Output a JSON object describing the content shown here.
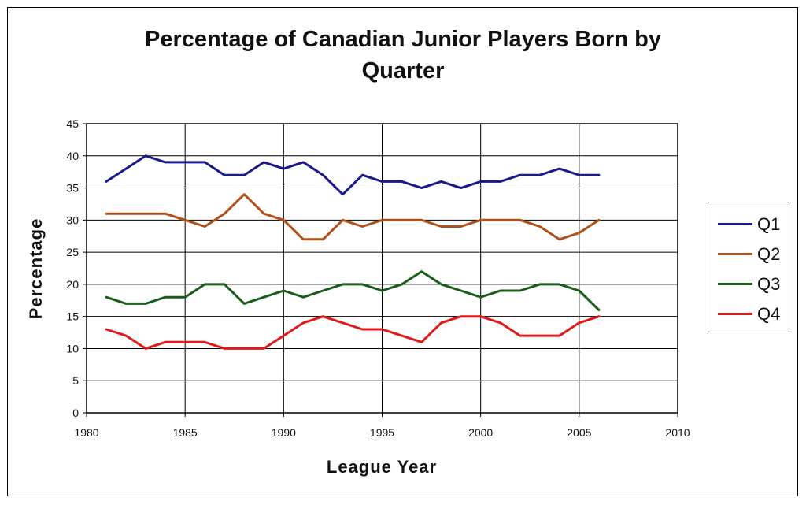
{
  "chart_data": {
    "type": "line",
    "title": "Percentage of Canadian Junior Players Born by Quarter",
    "title_lines": [
      "Percentage of Canadian Junior Players Born by",
      "Quarter"
    ],
    "xlabel": "League Year",
    "ylabel": "Percentage",
    "xlim": [
      1980,
      2010
    ],
    "ylim": [
      0,
      45
    ],
    "x_ticks": [
      "1980",
      "1985",
      "1990",
      "1995",
      "2000",
      "2005",
      "2010"
    ],
    "y_ticks": [
      "0",
      "5",
      "10",
      "15",
      "20",
      "25",
      "30",
      "35",
      "40",
      "45"
    ],
    "grid": true,
    "legend_placement": "right",
    "x": [
      1981,
      1982,
      1983,
      1984,
      1985,
      1986,
      1987,
      1988,
      1989,
      1990,
      1991,
      1992,
      1993,
      1994,
      1995,
      1996,
      1997,
      1998,
      1999,
      2000,
      2001,
      2002,
      2003,
      2004,
      2005,
      2006
    ],
    "series": [
      {
        "name": "Q1",
        "color": "#1a1a8c",
        "values": [
          36,
          38,
          40,
          39,
          39,
          39,
          37,
          37,
          39,
          38,
          39,
          37,
          34,
          37,
          36,
          36,
          35,
          36,
          35,
          36,
          36,
          37,
          37,
          38,
          37,
          37
        ]
      },
      {
        "name": "Q2",
        "color": "#b0501a",
        "values": [
          31,
          31,
          31,
          31,
          30,
          29,
          31,
          34,
          31,
          30,
          27,
          27,
          30,
          29,
          30,
          30,
          30,
          29,
          29,
          30,
          30,
          30,
          29,
          27,
          28,
          30
        ]
      },
      {
        "name": "Q3",
        "color": "#1a5c1a",
        "values": [
          18,
          17,
          17,
          18,
          18,
          20,
          20,
          17,
          18,
          19,
          18,
          19,
          20,
          20,
          19,
          20,
          22,
          20,
          19,
          18,
          19,
          19,
          20,
          20,
          19,
          16
        ]
      },
      {
        "name": "Q4",
        "color": "#e01a1a",
        "values": [
          13,
          12,
          10,
          11,
          11,
          11,
          10,
          10,
          10,
          12,
          14,
          15,
          14,
          13,
          13,
          12,
          11,
          14,
          15,
          15,
          14,
          12,
          12,
          12,
          14,
          15
        ]
      }
    ]
  }
}
